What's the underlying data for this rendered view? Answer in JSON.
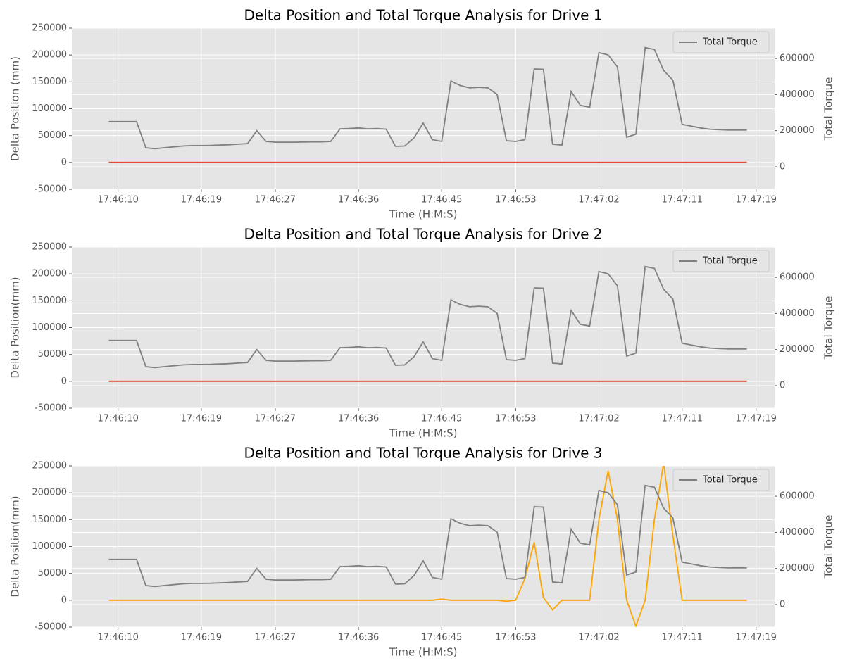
{
  "chart_data": [
    {
      "type": "line",
      "title": "Delta Position and Total Torque Analysis for Drive 1",
      "xlabel": "Time (H:M:S)",
      "ylabel": "Delta Position (mm)",
      "y2label": "Total Torque",
      "x": [
        "17:46:09",
        "17:46:10",
        "17:46:11",
        "17:46:12",
        "17:46:13",
        "17:46:14",
        "17:46:15",
        "17:46:16",
        "17:46:17",
        "17:46:18",
        "17:46:19",
        "17:46:20",
        "17:46:21",
        "17:46:22",
        "17:46:23",
        "17:46:24",
        "17:46:25",
        "17:46:26",
        "17:46:27",
        "17:46:28",
        "17:46:29",
        "17:46:30",
        "17:46:31",
        "17:46:32",
        "17:46:33",
        "17:46:34",
        "17:46:35",
        "17:46:36",
        "17:46:37",
        "17:46:38",
        "17:46:39",
        "17:46:40",
        "17:46:41",
        "17:46:42",
        "17:46:43",
        "17:46:44",
        "17:46:45",
        "17:46:46",
        "17:46:47",
        "17:46:48",
        "17:46:49",
        "17:46:50",
        "17:46:51",
        "17:46:52",
        "17:46:53",
        "17:46:54",
        "17:46:55",
        "17:46:56",
        "17:46:57",
        "17:46:58",
        "17:46:59",
        "17:47:00",
        "17:47:01",
        "17:47:02",
        "17:47:03",
        "17:47:04",
        "17:47:05",
        "17:47:06",
        "17:47:07",
        "17:47:08",
        "17:47:09",
        "17:47:10",
        "17:47:11",
        "17:47:12",
        "17:47:13",
        "17:47:14",
        "17:47:15",
        "17:47:16",
        "17:47:17",
        "17:47:18"
      ],
      "series": [
        {
          "color": "#e24a33",
          "values": [
            0,
            0,
            0,
            0,
            0,
            0,
            0,
            0,
            0,
            0,
            0,
            0,
            0,
            0,
            0,
            0,
            0,
            0,
            0,
            0,
            0,
            0,
            0,
            0,
            0,
            0,
            0,
            0,
            0,
            0,
            0,
            0,
            0,
            0,
            0,
            0,
            0,
            0,
            0,
            0,
            0,
            0,
            0,
            0,
            0,
            0,
            0,
            0,
            0,
            0,
            0,
            0,
            0,
            0,
            0,
            0,
            0,
            0,
            0,
            0,
            0,
            0,
            0,
            0,
            0,
            0,
            0,
            0,
            0,
            0
          ]
        },
        {
          "name": "Total Torque",
          "color": "#808080",
          "axis": "y2",
          "values": [
            250000,
            250000,
            250000,
            250000,
            105000,
            100000,
            105000,
            110000,
            115000,
            117000,
            117000,
            118000,
            120000,
            122000,
            125000,
            128000,
            200000,
            140000,
            136000,
            136000,
            136000,
            137000,
            138000,
            138000,
            140000,
            210000,
            212000,
            215000,
            210000,
            212000,
            208000,
            113000,
            115000,
            160000,
            242000,
            150000,
            140000,
            475000,
            450000,
            437000,
            440000,
            437000,
            400000,
            144000,
            140000,
            150000,
            542000,
            540000,
            125000,
            120000,
            417000,
            340000,
            330000,
            632000,
            620000,
            553000,
            164000,
            180000,
            660000,
            650000,
            534000,
            480000,
            235000,
            225000,
            215000,
            208000,
            205000,
            203000,
            203000,
            203000
          ]
        }
      ],
      "xlim": [
        "17:46:05",
        "17:47:21"
      ],
      "xticks": [
        "17:46:10",
        "17:46:19",
        "17:46:27",
        "17:46:36",
        "17:46:45",
        "17:46:53",
        "17:47:02",
        "17:47:11",
        "17:47:19"
      ],
      "ylim": [
        -50000,
        250000
      ],
      "yticks": [
        -50000,
        0,
        50000,
        100000,
        150000,
        200000,
        250000
      ],
      "y2lim": [
        -125000,
        768000
      ],
      "y2ticks": [
        0,
        200000,
        400000,
        600000
      ],
      "grid": true,
      "legend": "upper right"
    },
    {
      "type": "line",
      "title": "Delta Position and Total Torque Analysis for Drive 2",
      "xlabel": "Time (H:M:S)",
      "ylabel": "Delta Position(mm)",
      "y2label": "Total Torque",
      "x": [
        "17:46:09",
        "17:46:10",
        "17:46:11",
        "17:46:12",
        "17:46:13",
        "17:46:14",
        "17:46:15",
        "17:46:16",
        "17:46:17",
        "17:46:18",
        "17:46:19",
        "17:46:20",
        "17:46:21",
        "17:46:22",
        "17:46:23",
        "17:46:24",
        "17:46:25",
        "17:46:26",
        "17:46:27",
        "17:46:28",
        "17:46:29",
        "17:46:30",
        "17:46:31",
        "17:46:32",
        "17:46:33",
        "17:46:34",
        "17:46:35",
        "17:46:36",
        "17:46:37",
        "17:46:38",
        "17:46:39",
        "17:46:40",
        "17:46:41",
        "17:46:42",
        "17:46:43",
        "17:46:44",
        "17:46:45",
        "17:46:46",
        "17:46:47",
        "17:46:48",
        "17:46:49",
        "17:46:50",
        "17:46:51",
        "17:46:52",
        "17:46:53",
        "17:46:54",
        "17:46:55",
        "17:46:56",
        "17:46:57",
        "17:46:58",
        "17:46:59",
        "17:47:00",
        "17:47:01",
        "17:47:02",
        "17:47:03",
        "17:47:04",
        "17:47:05",
        "17:47:06",
        "17:47:07",
        "17:47:08",
        "17:47:09",
        "17:47:10",
        "17:47:11",
        "17:47:12",
        "17:47:13",
        "17:47:14",
        "17:47:15",
        "17:47:16",
        "17:47:17",
        "17:47:18"
      ],
      "series": [
        {
          "color": "#e24a33",
          "values": [
            0,
            0,
            0,
            0,
            0,
            0,
            0,
            0,
            0,
            0,
            0,
            0,
            0,
            0,
            0,
            0,
            0,
            0,
            0,
            0,
            0,
            0,
            0,
            0,
            0,
            0,
            0,
            0,
            0,
            0,
            0,
            0,
            0,
            0,
            0,
            0,
            0,
            0,
            0,
            0,
            0,
            0,
            0,
            0,
            0,
            0,
            0,
            0,
            0,
            0,
            0,
            0,
            0,
            0,
            0,
            0,
            0,
            0,
            0,
            0,
            0,
            0,
            0,
            0,
            0,
            0,
            0,
            0,
            0,
            0
          ]
        },
        {
          "name": "Total Torque",
          "color": "#808080",
          "axis": "y2",
          "values": [
            250000,
            250000,
            250000,
            250000,
            105000,
            100000,
            105000,
            110000,
            115000,
            117000,
            117000,
            118000,
            120000,
            122000,
            125000,
            128000,
            200000,
            140000,
            136000,
            136000,
            136000,
            137000,
            138000,
            138000,
            140000,
            210000,
            212000,
            215000,
            210000,
            212000,
            208000,
            113000,
            115000,
            160000,
            242000,
            150000,
            140000,
            475000,
            450000,
            437000,
            440000,
            437000,
            400000,
            144000,
            140000,
            150000,
            542000,
            540000,
            125000,
            120000,
            417000,
            340000,
            330000,
            632000,
            620000,
            553000,
            164000,
            180000,
            660000,
            650000,
            534000,
            480000,
            235000,
            225000,
            215000,
            208000,
            205000,
            203000,
            203000,
            203000
          ]
        }
      ],
      "xlim": [
        "17:46:05",
        "17:47:21"
      ],
      "xticks": [
        "17:46:10",
        "17:46:19",
        "17:46:27",
        "17:46:36",
        "17:46:45",
        "17:46:53",
        "17:47:02",
        "17:47:11",
        "17:47:19"
      ],
      "ylim": [
        -50000,
        250000
      ],
      "yticks": [
        -50000,
        0,
        50000,
        100000,
        150000,
        200000,
        250000
      ],
      "y2lim": [
        -125000,
        768000
      ],
      "y2ticks": [
        0,
        200000,
        400000,
        600000
      ],
      "grid": true,
      "legend": "upper right"
    },
    {
      "type": "line",
      "title": "Delta Position and Total Torque Analysis for Drive 3",
      "xlabel": "Time (H:M:S)",
      "ylabel": "Delta Position(mm)",
      "y2label": "Total Torque",
      "x": [
        "17:46:09",
        "17:46:10",
        "17:46:11",
        "17:46:12",
        "17:46:13",
        "17:46:14",
        "17:46:15",
        "17:46:16",
        "17:46:17",
        "17:46:18",
        "17:46:19",
        "17:46:20",
        "17:46:21",
        "17:46:22",
        "17:46:23",
        "17:46:24",
        "17:46:25",
        "17:46:26",
        "17:46:27",
        "17:46:28",
        "17:46:29",
        "17:46:30",
        "17:46:31",
        "17:46:32",
        "17:46:33",
        "17:46:34",
        "17:46:35",
        "17:46:36",
        "17:46:37",
        "17:46:38",
        "17:46:39",
        "17:46:40",
        "17:46:41",
        "17:46:42",
        "17:46:43",
        "17:46:44",
        "17:46:45",
        "17:46:46",
        "17:46:47",
        "17:46:48",
        "17:46:49",
        "17:46:50",
        "17:46:51",
        "17:46:52",
        "17:46:53",
        "17:46:54",
        "17:46:55",
        "17:46:56",
        "17:46:57",
        "17:46:58",
        "17:46:59",
        "17:47:00",
        "17:47:01",
        "17:47:02",
        "17:47:03",
        "17:47:04",
        "17:47:05",
        "17:47:06",
        "17:47:07",
        "17:47:08",
        "17:47:09",
        "17:47:10",
        "17:47:11",
        "17:47:12",
        "17:47:13",
        "17:47:14",
        "17:47:15",
        "17:47:16",
        "17:47:17",
        "17:47:18"
      ],
      "series": [
        {
          "color": "#ffa500",
          "values": [
            0,
            0,
            0,
            0,
            0,
            0,
            0,
            0,
            0,
            0,
            0,
            0,
            0,
            0,
            0,
            0,
            0,
            0,
            0,
            0,
            0,
            0,
            0,
            0,
            0,
            0,
            0,
            0,
            0,
            0,
            0,
            0,
            0,
            0,
            0,
            0,
            2000,
            0,
            0,
            0,
            0,
            0,
            0,
            -2000,
            0,
            40000,
            108000,
            5000,
            -18000,
            0,
            0,
            0,
            0,
            150000,
            241000,
            150000,
            0,
            -48000,
            0,
            150000,
            255000,
            120000,
            0,
            0,
            0,
            0,
            0,
            0,
            0,
            0
          ]
        },
        {
          "name": "Total Torque",
          "color": "#808080",
          "axis": "y2",
          "values": [
            250000,
            250000,
            250000,
            250000,
            105000,
            100000,
            105000,
            110000,
            115000,
            117000,
            117000,
            118000,
            120000,
            122000,
            125000,
            128000,
            200000,
            140000,
            136000,
            136000,
            136000,
            137000,
            138000,
            138000,
            140000,
            210000,
            212000,
            215000,
            210000,
            212000,
            208000,
            113000,
            115000,
            160000,
            242000,
            150000,
            140000,
            475000,
            450000,
            437000,
            440000,
            437000,
            400000,
            144000,
            140000,
            150000,
            542000,
            540000,
            125000,
            120000,
            417000,
            340000,
            330000,
            632000,
            620000,
            553000,
            164000,
            180000,
            660000,
            650000,
            534000,
            480000,
            235000,
            225000,
            215000,
            208000,
            205000,
            203000,
            203000,
            203000
          ]
        }
      ],
      "xlim": [
        "17:46:05",
        "17:47:21"
      ],
      "xticks": [
        "17:46:10",
        "17:46:19",
        "17:46:27",
        "17:46:36",
        "17:46:45",
        "17:46:53",
        "17:47:02",
        "17:47:11",
        "17:47:19"
      ],
      "ylim": [
        -50000,
        250000
      ],
      "yticks": [
        -50000,
        0,
        50000,
        100000,
        150000,
        200000,
        250000
      ],
      "y2lim": [
        -125000,
        768000
      ],
      "y2ticks": [
        0,
        200000,
        400000,
        600000
      ],
      "grid": true,
      "legend": "upper right"
    }
  ]
}
